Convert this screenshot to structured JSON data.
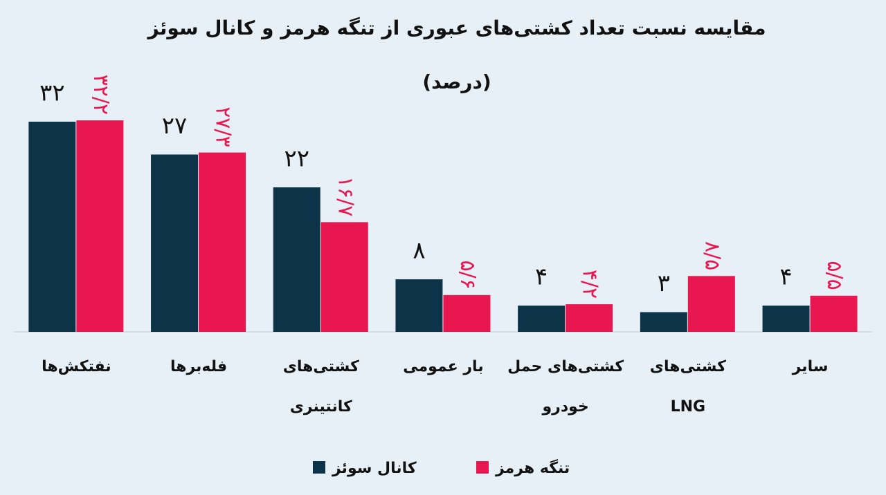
{
  "chart_data": {
    "type": "bar",
    "title": "مقایسه نسبت تعداد کشتی‌های عبوری از تنگه هرمز و کانال سوئز",
    "subtitle": "(درصد)",
    "categories": [
      "نفتکش‌ها",
      "فله‌برها",
      "کشتی‌های\nکانتینری",
      "بار عمومی",
      "کشتی‌های حمل\nخودرو",
      "کشتی‌های\nLNG",
      "سایر"
    ],
    "series": [
      {
        "name": "کانال سوئز",
        "color": "#0d3349",
        "values": [
          32,
          27,
          22,
          8,
          4,
          3,
          4
        ],
        "value_labels": [
          "۳۲",
          "۲۷",
          "۲۲",
          "۸",
          "۴",
          "۳",
          "۴"
        ]
      },
      {
        "name": "تنگه هرمز",
        "color": "#e8174f",
        "values": [
          32.2,
          27.3,
          16.7,
          5.6,
          4.2,
          8.5,
          5.5
        ],
        "value_labels": [
          "۳۲/۲",
          "۲۷/۳",
          "۱۶/۷",
          "۵/۶",
          "۴/۲",
          "۸/۵",
          "۵/۵"
        ]
      }
    ]
  }
}
